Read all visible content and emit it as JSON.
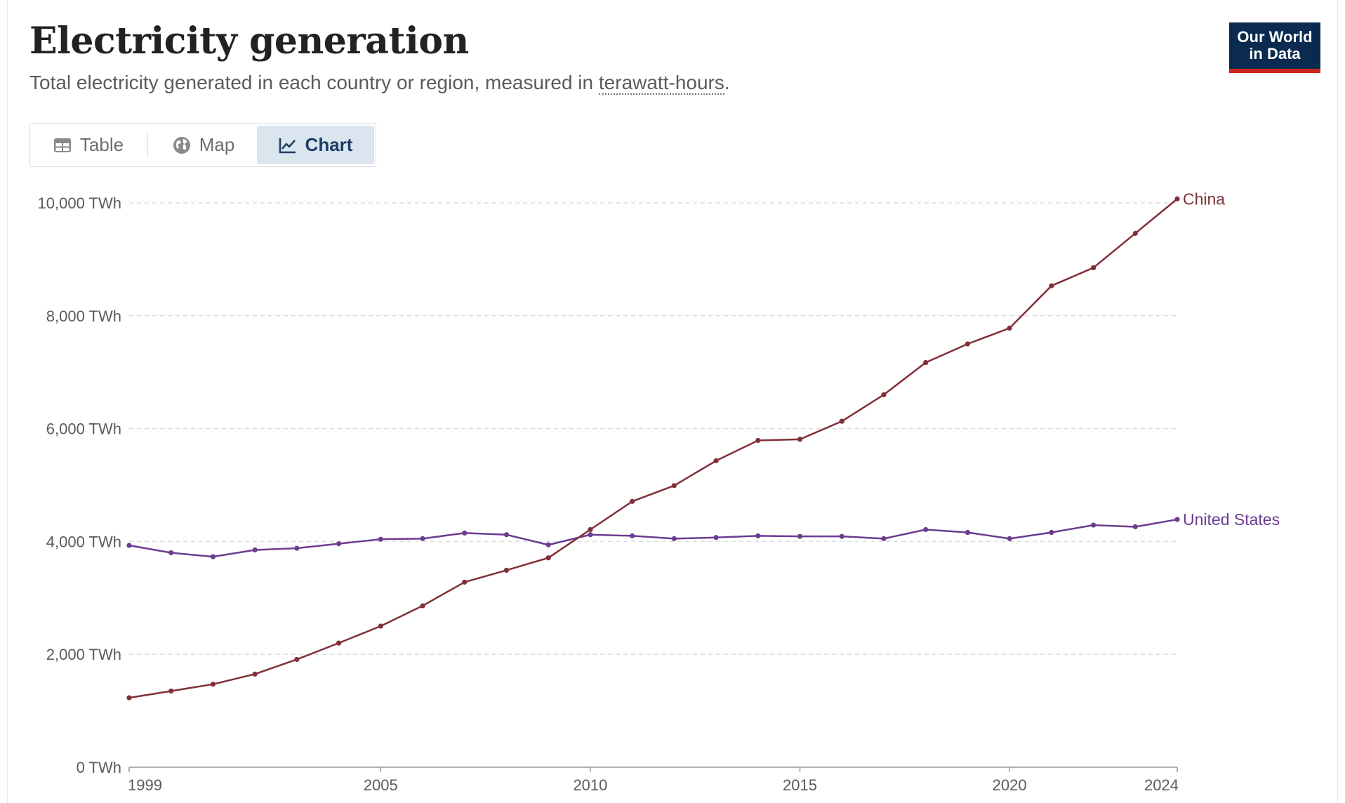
{
  "header": {
    "title": "Electricity generation",
    "subtitle_prefix": "Total electricity generated in each country or region, measured in ",
    "subtitle_link": "terawatt-hours",
    "subtitle_suffix": "."
  },
  "logo": {
    "line1": "Our World",
    "line2": "in Data"
  },
  "tabs": [
    {
      "label": "Table",
      "icon": "table-icon",
      "active": false
    },
    {
      "label": "Map",
      "icon": "globe-icon",
      "active": false
    },
    {
      "label": "Chart",
      "icon": "line-chart-icon",
      "active": true
    }
  ],
  "colors": {
    "china": "#813038",
    "us": "#6c3c90",
    "grid": "#dddddd",
    "axis": "#999999",
    "logo_bg": "#0b2a4f",
    "logo_bar": "#ce261e"
  },
  "chart_data": {
    "type": "line",
    "title": "",
    "xlabel": "",
    "ylabel": "",
    "x": [
      1999,
      2000,
      2001,
      2002,
      2003,
      2004,
      2005,
      2006,
      2007,
      2008,
      2009,
      2010,
      2011,
      2012,
      2013,
      2014,
      2015,
      2016,
      2017,
      2018,
      2019,
      2020,
      2021,
      2022,
      2023,
      2024
    ],
    "ylim": [
      0,
      10000
    ],
    "y_ticks": [
      0,
      2000,
      4000,
      6000,
      8000,
      10000
    ],
    "y_tick_labels": [
      "0 TWh",
      "2,000 TWh",
      "4,000 TWh",
      "6,000 TWh",
      "8,000 TWh",
      "10,000 TWh"
    ],
    "x_ticks": [
      1999,
      2005,
      2010,
      2015,
      2020,
      2024
    ],
    "x_tick_labels": [
      "1999",
      "2005",
      "2010",
      "2015",
      "2020",
      "2024"
    ],
    "grid": "horizontal dashed",
    "series": [
      {
        "name": "China",
        "color": "#813038",
        "values": [
          1230,
          1350,
          1470,
          1650,
          1910,
          2200,
          2500,
          2860,
          3280,
          3490,
          3710,
          4210,
          4710,
          4990,
          5430,
          5790,
          5810,
          6130,
          6600,
          7170,
          7500,
          7780,
          8530,
          8850,
          9460,
          10070
        ]
      },
      {
        "name": "United States",
        "color": "#6c3c90",
        "values": [
          3930,
          3800,
          3730,
          3850,
          3880,
          3960,
          4040,
          4050,
          4150,
          4120,
          3940,
          4120,
          4100,
          4050,
          4070,
          4100,
          4090,
          4090,
          4050,
          4210,
          4160,
          4050,
          4160,
          4290,
          4260,
          4390
        ]
      }
    ]
  }
}
